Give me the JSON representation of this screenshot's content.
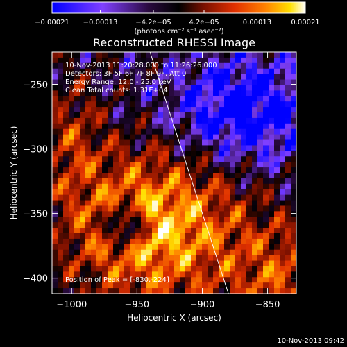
{
  "chart_data": {
    "type": "heatmap",
    "title": "Reconstructed RHESSI Image",
    "xlabel": "Heliocentric X (arcsec)",
    "ylabel": "Heliocentric Y (arcsec)",
    "xlim": [
      -1015,
      -828
    ],
    "ylim": [
      -412,
      -225
    ],
    "x_ticks": [
      -1000,
      -950,
      -900,
      -850
    ],
    "x_tick_labels": [
      "−1000",
      "−950",
      "−900",
      "−850"
    ],
    "y_ticks": [
      -250,
      -300,
      -350,
      -400
    ],
    "y_tick_labels": [
      "−250",
      "−300",
      "−350",
      "−400"
    ],
    "colorbar": {
      "min": -0.00021,
      "max": 0.00021,
      "tick_values": [
        -0.00021,
        -0.00013,
        -4.2e-05,
        4.2e-05,
        0.00013,
        0.00021
      ],
      "tick_labels": [
        "−0.00021",
        "−0.00013",
        "−4.2e−05",
        "4.2e−05",
        "0.00013",
        "0.00021"
      ],
      "units_label": "(photons cm⁻² s⁻¹ asec⁻²)"
    },
    "info_lines": [
      "10-Nov-2013 11:20:28.000 to 11:26:26.000",
      "Detectors: 3F 5F 6F 7F 8F 9F, Att 0",
      "Energy Range: 12.0 - 25.0 keV",
      "Clean     Total counts: 1.31E+04"
    ],
    "peak_label": "Position of Peak = [-830,-224]",
    "limb_line": [
      [
        -940,
        -225
      ],
      [
        -880,
        -412
      ]
    ],
    "grid": false
  },
  "footer": {
    "timestamp": "10-Nov-2013 09:42"
  },
  "colors": {
    "background": "#000000",
    "text": "#ffffff",
    "colormap_stops": [
      "#0000ff",
      "#8040ff",
      "#2a0a40",
      "#000000",
      "#7a1000",
      "#e03000",
      "#ff8000",
      "#ffe000",
      "#ffffff"
    ]
  }
}
